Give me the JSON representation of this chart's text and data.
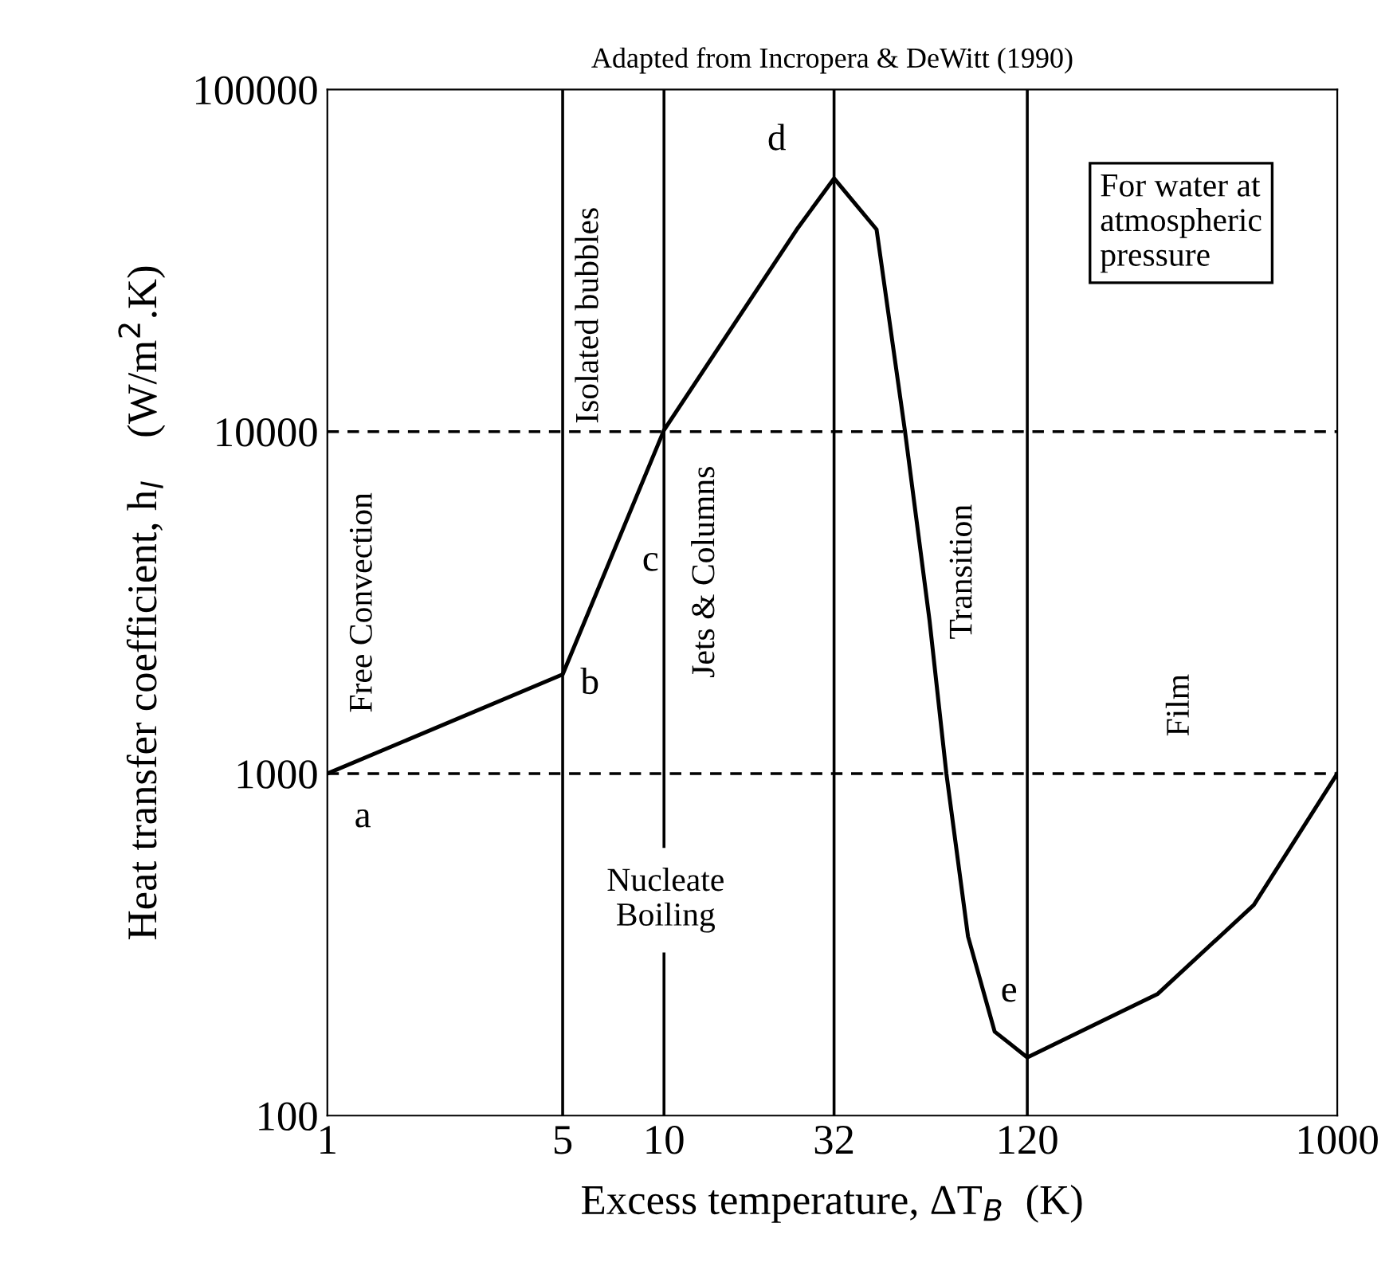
{
  "chart_data": {
    "type": "line",
    "title": "Adapted from Incropera & DeWitt (1990)",
    "xlabel": "Excess temperature, ΔT$_{B}$  (K)",
    "ylabel": "Heat transfer coefficient, h$_{l}$    (W/m$^{2}$.K)",
    "x": [
      1,
      5,
      10,
      24.8,
      32,
      42.8,
      52,
      61.5,
      69,
      80,
      96,
      120,
      293,
      565,
      1000
    ],
    "series": [
      {
        "color": "#000000",
        "values": [
          1000,
          1950,
          10100,
          39000,
          55000,
          39000,
          10000,
          2800,
          1000,
          334,
          176,
          148,
          227,
          413,
          1000
        ]
      }
    ],
    "log": "xy",
    "xlim": [
      1,
      1000
    ],
    "ylim": [
      100,
      100000
    ],
    "xticks": [
      1,
      5,
      10,
      32,
      120,
      1000
    ],
    "yticks": [
      100,
      1000,
      10000,
      100000
    ],
    "grid": false,
    "legend": false,
    "marker": "none",
    "line_style": "solid",
    "ref_lines": [
      {
        "axis": "x",
        "value": 5,
        "color": "#000000",
        "line_style": "solid"
      },
      {
        "axis": "x",
        "value": 10,
        "color": "#000000",
        "line_style": "solid"
      },
      {
        "axis": "x",
        "value": 32,
        "color": "#000000",
        "line_style": "solid"
      },
      {
        "axis": "x",
        "value": 120,
        "color": "#000000",
        "line_style": "solid"
      },
      {
        "axis": "y",
        "value": 1000,
        "color": "#000000",
        "line_style": "dashed"
      },
      {
        "axis": "y",
        "value": 10000,
        "color": "#000000",
        "line_style": "dashed"
      }
    ],
    "annotations": [
      "a",
      "b",
      "c",
      "d",
      "e",
      "Free Convection",
      "Isolated bubbles",
      "Jets & Columns",
      "Transition",
      "Film",
      "Nucleate\nBoiling",
      "For water at\natmospheric\npressure"
    ]
  }
}
